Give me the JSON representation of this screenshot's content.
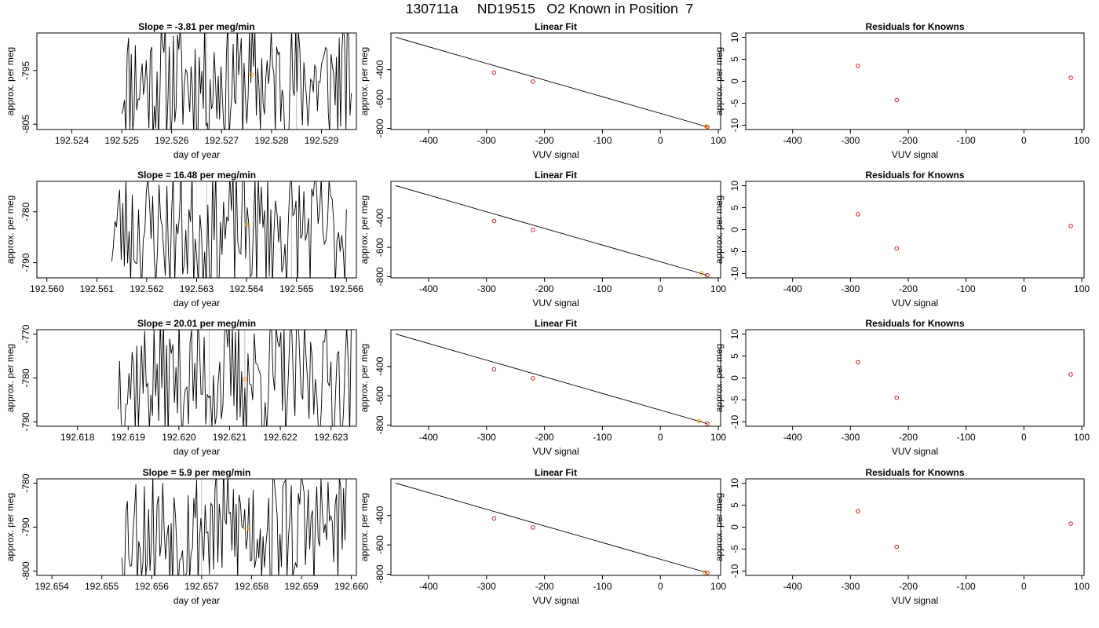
{
  "suptitle": "130711a     ND19515   O2 Known in Position  7",
  "colors": {
    "series_line": "#000000",
    "vertical_markers": "#bbbbbb",
    "known_points": "#cc2222",
    "current_point": "#ee9900",
    "fit_line": "#000000"
  },
  "chart_data": [
    {
      "type": "line",
      "title": "Slope =  -3.81  per meg/min",
      "xlabel": "day of year",
      "ylabel": "approx. per meg",
      "xlim": [
        192.5233,
        192.5297
      ],
      "ylim": [
        -806.0,
        -788.0
      ],
      "xticks": [
        "192.524",
        "192.525",
        "192.526",
        "192.527",
        "192.528",
        "192.529"
      ],
      "yticks": [
        "-795",
        "-805"
      ],
      "markers": [
        192.5267,
        192.5285
      ],
      "point": {
        "x": 192.5276,
        "y": -795.8
      },
      "line_range": [
        192.525,
        192.5296
      ],
      "line_count": 170,
      "line_seed": 11
    },
    {
      "type": "scatter",
      "title": "Linear Fit",
      "xlabel": "VUV signal",
      "ylabel": "approx. per meg",
      "xlim": [
        -465,
        104
      ],
      "ylim": [
        -808,
        -150
      ],
      "xticks": [
        "-400",
        "-300",
        "-200",
        "-100",
        "0",
        "100"
      ],
      "yticks": [
        "-400",
        "-600",
        "-800"
      ],
      "knowns": {
        "x": [
          -287,
          -220,
          81
        ],
        "y": [
          -420,
          -481,
          -790
        ]
      },
      "current": {
        "x": 79,
        "y": -787
      },
      "fit": {
        "x": [
          -457,
          81
        ],
        "y": [
          -179,
          -790
        ]
      }
    },
    {
      "type": "scatter",
      "title": "Residuals for Knowns",
      "xlabel": "VUV signal",
      "ylabel": "approx. per meg",
      "xlim": [
        -481,
        104
      ],
      "ylim": [
        -11,
        11
      ],
      "xticks": [
        "-400",
        "-300",
        "-200",
        "-100",
        "0",
        "100"
      ],
      "yticks": [
        "10",
        "5",
        "0",
        "-5",
        "-10"
      ],
      "knowns": {
        "x": [
          -287,
          -220,
          81
        ],
        "y": [
          3.5,
          -4.3,
          0.8
        ]
      }
    },
    {
      "type": "line",
      "title": "Slope =  16.48  per meg/min",
      "xlabel": "day of year",
      "ylabel": "approx. per meg",
      "xlim": [
        192.5598,
        192.5662
      ],
      "ylim": [
        -793.0,
        -774.0
      ],
      "xticks": [
        "192.560",
        "192.561",
        "192.562",
        "192.563",
        "192.564",
        "192.565",
        "192.566"
      ],
      "yticks": [
        "-780",
        "-790"
      ],
      "markers": [
        192.5632,
        192.5649
      ],
      "point": {
        "x": 192.564,
        "y": -782.5
      },
      "line_range": [
        192.5613,
        192.566
      ],
      "line_count": 150,
      "line_seed": 23
    },
    {
      "type": "scatter",
      "title": "Linear Fit",
      "xlabel": "VUV signal",
      "ylabel": "approx. per meg",
      "xlim": [
        -465,
        104
      ],
      "ylim": [
        -808,
        -150
      ],
      "xticks": [
        "-400",
        "-300",
        "-200",
        "-100",
        "0",
        "100"
      ],
      "yticks": [
        "-400",
        "-600",
        "-800"
      ],
      "knowns": {
        "x": [
          -287,
          -220,
          81
        ],
        "y": [
          -420,
          -481,
          -790
        ]
      },
      "current": {
        "x": 71,
        "y": -777
      },
      "fit": {
        "x": [
          -457,
          81
        ],
        "y": [
          -179,
          -790
        ]
      }
    },
    {
      "type": "scatter",
      "title": "Residuals for Knowns",
      "xlabel": "VUV signal",
      "ylabel": "approx. per meg",
      "xlim": [
        -481,
        104
      ],
      "ylim": [
        -11,
        11
      ],
      "xticks": [
        "-400",
        "-300",
        "-200",
        "-100",
        "0",
        "100"
      ],
      "yticks": [
        "10",
        "5",
        "0",
        "-5",
        "-10"
      ],
      "knowns": {
        "x": [
          -287,
          -220,
          81
        ],
        "y": [
          3.5,
          -4.3,
          0.8
        ]
      }
    },
    {
      "type": "line",
      "title": "Slope =  20.01  per meg/min",
      "xlabel": "day of year",
      "ylabel": "approx. per meg",
      "xlim": [
        192.6172,
        192.6235
      ],
      "ylim": [
        -791.0,
        -769.0
      ],
      "xticks": [
        "192.618",
        "192.619",
        "192.620",
        "192.621",
        "192.622",
        "192.623"
      ],
      "yticks": [
        "-770",
        "-780",
        "-790"
      ],
      "markers": [
        192.6206,
        192.6213
      ],
      "point": {
        "x": 192.6213,
        "y": -780.3
      },
      "line_range": [
        192.6188,
        192.6234
      ],
      "line_count": 150,
      "line_seed": 37
    },
    {
      "type": "scatter",
      "title": "Linear Fit",
      "xlabel": "VUV signal",
      "ylabel": "approx. per meg",
      "xlim": [
        -465,
        104
      ],
      "ylim": [
        -808,
        -150
      ],
      "xticks": [
        "-400",
        "-300",
        "-200",
        "-100",
        "0",
        "100"
      ],
      "yticks": [
        "-400",
        "-600",
        "-800"
      ],
      "knowns": {
        "x": [
          -287,
          -220,
          81
        ],
        "y": [
          -420,
          -481,
          -790
        ]
      },
      "current": {
        "x": 67,
        "y": -773
      },
      "fit": {
        "x": [
          -457,
          81
        ],
        "y": [
          -179,
          -790
        ]
      }
    },
    {
      "type": "scatter",
      "title": "Residuals for Knowns",
      "xlabel": "VUV signal",
      "ylabel": "approx. per meg",
      "xlim": [
        -481,
        104
      ],
      "ylim": [
        -11,
        11
      ],
      "xticks": [
        "-400",
        "-300",
        "-200",
        "-100",
        "0",
        "100"
      ],
      "yticks": [
        "10",
        "5",
        "0",
        "-5",
        "-10"
      ],
      "knowns": {
        "x": [
          -287,
          -220,
          81
        ],
        "y": [
          3.6,
          -4.5,
          0.8
        ]
      }
    },
    {
      "type": "line",
      "title": "Slope =  5.9  per meg/min",
      "xlabel": "day of year",
      "ylabel": "approx. per meg",
      "xlim": [
        192.6537,
        192.6601
      ],
      "ylim": [
        -801.0,
        -779.0
      ],
      "xticks": [
        "192.654",
        "192.655",
        "192.656",
        "192.657",
        "192.658",
        "192.659",
        "192.660"
      ],
      "yticks": [
        "-780",
        "-790",
        "-800"
      ],
      "markers": [
        192.657,
        192.6587
      ],
      "point": {
        "x": 192.6579,
        "y": -790.4
      },
      "line_range": [
        192.6554,
        192.6599
      ],
      "line_count": 160,
      "line_seed": 53
    },
    {
      "type": "scatter",
      "title": "Linear Fit",
      "xlabel": "VUV signal",
      "ylabel": "approx. per meg",
      "xlim": [
        -465,
        104
      ],
      "ylim": [
        -808,
        -150
      ],
      "xticks": [
        "-400",
        "-300",
        "-200",
        "-100",
        "0",
        "100"
      ],
      "yticks": [
        "-400",
        "-600",
        "-800"
      ],
      "knowns": {
        "x": [
          -287,
          -220,
          81
        ],
        "y": [
          -420,
          -481,
          -790
        ]
      },
      "current": {
        "x": 77,
        "y": -788
      },
      "fit": {
        "x": [
          -457,
          81
        ],
        "y": [
          -179,
          -790
        ]
      }
    },
    {
      "type": "scatter",
      "title": "Residuals for Knowns",
      "xlabel": "VUV signal",
      "ylabel": "approx. per meg",
      "xlim": [
        -481,
        104
      ],
      "ylim": [
        -11,
        11
      ],
      "xticks": [
        "-400",
        "-300",
        "-200",
        "-100",
        "0",
        "100"
      ],
      "yticks": [
        "10",
        "5",
        "0",
        "-5",
        "-10"
      ],
      "knowns": {
        "x": [
          -287,
          -220,
          81
        ],
        "y": [
          3.6,
          -4.5,
          0.8
        ]
      }
    }
  ]
}
